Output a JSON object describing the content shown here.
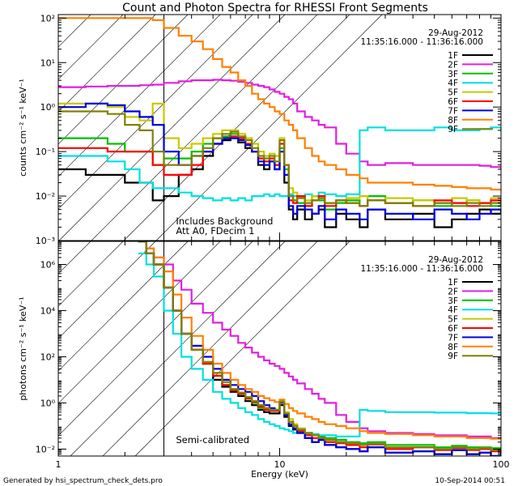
{
  "title": "Count and Photon Spectra for RHESSI Front Segments",
  "footer": {
    "left": "Generated by hsi_spectrum_check_dets.pro",
    "right": "10-Sep-2014 00:51"
  },
  "chart_data": [
    {
      "type": "line",
      "id": "counts",
      "title": "Count and Photon Spectra for RHESSI Front Segments",
      "ylabel": "counts cm⁻² s⁻¹ keV⁻¹",
      "xlabel": "",
      "xscale": "log",
      "yscale": "log",
      "xlim": [
        1,
        100
      ],
      "ylim": [
        0.001,
        120
      ],
      "yticks": [
        0.001,
        0.01,
        0.1,
        1,
        10,
        100
      ],
      "ytick_labels": [
        "10⁻³",
        "10⁻²",
        "10⁻¹",
        "10⁰",
        "10¹",
        "10²"
      ],
      "shaded_region": [
        1,
        3
      ],
      "date": "29-Aug-2012",
      "time_range": "11:35:16.000 - 11:36:16.000",
      "annotation": [
        "Includes Background",
        "Att A0, FDecim 1"
      ],
      "x": [
        1.0,
        1.33,
        1.67,
        2.0,
        2.33,
        2.67,
        3.0,
        3.5,
        4.0,
        4.5,
        5.0,
        5.5,
        6.0,
        6.5,
        7.0,
        7.5,
        8.0,
        8.5,
        9.0,
        9.5,
        10.0,
        10.5,
        11.0,
        11.5,
        12.0,
        13.0,
        14.0,
        15.0,
        16.0,
        18.0,
        20.0,
        23.0,
        25.0,
        30.0,
        40.0,
        50.0,
        60.0,
        70.0,
        80.0,
        90.0,
        100.0
      ],
      "series": [
        {
          "name": "1F",
          "color": "#000000",
          "values": [
            0.04,
            0.03,
            0.03,
            0.02,
            0.02,
            0.008,
            0.01,
            0.03,
            0.04,
            0.08,
            0.15,
            0.18,
            0.2,
            0.16,
            0.12,
            0.1,
            0.05,
            0.04,
            0.06,
            0.04,
            0.1,
            0.02,
            0.005,
            0.003,
            0.005,
            0.003,
            0.004,
            0.005,
            0.002,
            0.004,
            0.003,
            0.002,
            0.005,
            0.003,
            0.004,
            0.002,
            0.003,
            0.004,
            0.005,
            0.004,
            0.005
          ]
        },
        {
          "name": "2F",
          "color": "#e020e0",
          "values": [
            2.8,
            2.9,
            3.0,
            3.0,
            3.1,
            3.2,
            3.5,
            3.8,
            4.0,
            4.0,
            4.1,
            4.0,
            3.9,
            3.7,
            3.5,
            3.2,
            3.0,
            2.8,
            2.5,
            2.2,
            2.0,
            1.7,
            1.5,
            1.2,
            0.8,
            0.6,
            0.5,
            0.4,
            0.35,
            0.15,
            0.09,
            0.06,
            0.05,
            0.055,
            0.05,
            0.05,
            0.05,
            0.05,
            0.048,
            0.045,
            0.04
          ]
        },
        {
          "name": "3F",
          "color": "#00c000",
          "values": [
            0.2,
            0.2,
            0.15,
            0.1,
            0.1,
            0.05,
            0.07,
            0.07,
            0.1,
            0.15,
            0.2,
            0.22,
            0.25,
            0.2,
            0.15,
            0.1,
            0.07,
            0.06,
            0.07,
            0.05,
            0.12,
            0.04,
            0.01,
            0.008,
            0.007,
            0.006,
            0.01,
            0.008,
            0.005,
            0.007,
            0.008,
            0.006,
            0.01,
            0.007,
            0.008,
            0.006,
            0.007,
            0.008,
            0.007,
            0.006,
            0.007
          ]
        },
        {
          "name": "4F",
          "color": "#00e0e0",
          "values": [
            0.08,
            0.08,
            0.06,
            0.04,
            0.02,
            0.015,
            0.015,
            0.012,
            0.01,
            0.009,
            0.008,
            0.009,
            0.008,
            0.009,
            0.008,
            0.01,
            0.01,
            0.011,
            0.01,
            0.011,
            0.01,
            0.01,
            0.011,
            0.01,
            0.01,
            0.011,
            0.01,
            0.012,
            0.011,
            0.01,
            0.011,
            0.3,
            0.35,
            0.3,
            0.3,
            0.35,
            0.3,
            0.3,
            0.32,
            0.35,
            0.3
          ]
        },
        {
          "name": "5F",
          "color": "#c8c800",
          "values": [
            1.2,
            1.2,
            1.0,
            0.6,
            0.5,
            1.2,
            0.2,
            0.12,
            0.15,
            0.2,
            0.25,
            0.3,
            0.3,
            0.25,
            0.2,
            0.15,
            0.1,
            0.08,
            0.09,
            0.08,
            0.2,
            0.05,
            0.015,
            0.012,
            0.01,
            0.008,
            0.01,
            0.009,
            0.007,
            0.008,
            0.009,
            0.01,
            0.008,
            0.009,
            0.008,
            0.007,
            0.009,
            0.008,
            0.007,
            0.009,
            0.008
          ]
        },
        {
          "name": "6F",
          "color": "#ff0000",
          "values": [
            0.12,
            0.12,
            0.1,
            0.1,
            0.1,
            0.05,
            0.03,
            0.03,
            0.05,
            0.1,
            0.15,
            0.2,
            0.22,
            0.2,
            0.15,
            0.1,
            0.07,
            0.06,
            0.07,
            0.05,
            0.15,
            0.05,
            0.008,
            0.007,
            0.01,
            0.006,
            0.008,
            0.01,
            0.006,
            0.008,
            0.007,
            0.006,
            0.008,
            0.007,
            0.006,
            0.008,
            0.007,
            0.006,
            0.007,
            0.008,
            0.006
          ]
        },
        {
          "name": "7F",
          "color": "#0000e0",
          "values": [
            1.0,
            1.2,
            1.1,
            0.8,
            0.6,
            0.4,
            0.1,
            0.05,
            0.08,
            0.1,
            0.15,
            0.2,
            0.2,
            0.18,
            0.14,
            0.1,
            0.06,
            0.05,
            0.06,
            0.04,
            0.1,
            0.03,
            0.006,
            0.004,
            0.006,
            0.005,
            0.004,
            0.006,
            0.003,
            0.005,
            0.004,
            0.003,
            0.005,
            0.004,
            0.003,
            0.005,
            0.004,
            0.003,
            0.004,
            0.005,
            0.004
          ]
        },
        {
          "name": "8F",
          "color": "#ff8000",
          "values": [
            100.0,
            100.0,
            100.0,
            100.0,
            100.0,
            90.0,
            60.0,
            40.0,
            30.0,
            20.0,
            12.0,
            8.0,
            6.0,
            4.0,
            3.0,
            2.0,
            1.5,
            1.2,
            1.0,
            0.8,
            0.7,
            0.5,
            0.4,
            0.3,
            0.2,
            0.12,
            0.08,
            0.06,
            0.05,
            0.04,
            0.03,
            0.025,
            0.02,
            0.02,
            0.018,
            0.017,
            0.016,
            0.015,
            0.015,
            0.014,
            0.013
          ]
        },
        {
          "name": "9F",
          "color": "#808000",
          "values": [
            0.8,
            0.8,
            0.7,
            0.4,
            0.3,
            0.1,
            0.05,
            0.05,
            0.08,
            0.12,
            0.2,
            0.25,
            0.28,
            0.22,
            0.18,
            0.12,
            0.08,
            0.07,
            0.08,
            0.06,
            0.18,
            0.05,
            0.01,
            0.008,
            0.009,
            0.007,
            0.008,
            0.009,
            0.007,
            0.008,
            0.007,
            0.006,
            0.008,
            0.007,
            0.006,
            0.007,
            0.006,
            0.007,
            0.006,
            0.007,
            0.006
          ]
        }
      ]
    },
    {
      "type": "line",
      "id": "photons",
      "ylabel": "photons cm⁻² s⁻¹ keV⁻¹",
      "xlabel": "Energy (keV)",
      "xscale": "log",
      "yscale": "log",
      "xlim": [
        1,
        100
      ],
      "ylim": [
        0.005,
        10000000
      ],
      "yticks": [
        0.01,
        1,
        100,
        10000,
        1000000
      ],
      "ytick_labels": [
        "10⁻²",
        "10⁰",
        "10²",
        "10⁴",
        "10⁶"
      ],
      "xticks": [
        1,
        10,
        100
      ],
      "xtick_labels": [
        "1",
        "10",
        "100"
      ],
      "shaded_region": [
        1,
        3
      ],
      "date": "29-Aug-2012",
      "time_range": "11:35:16.000 - 11:36:16.000",
      "annotation": [
        "Semi-calibrated"
      ],
      "x": [
        2.3,
        2.5,
        2.7,
        3.0,
        3.3,
        3.6,
        4.0,
        4.5,
        5.0,
        5.5,
        6.0,
        6.5,
        7.0,
        7.5,
        8.0,
        8.5,
        9.0,
        9.5,
        10.0,
        10.5,
        11.0,
        11.5,
        12.0,
        13.0,
        14.0,
        15.0,
        16.0,
        18.0,
        20.0,
        23.0,
        25.0,
        30.0,
        40.0,
        50.0,
        60.0,
        70.0,
        80.0,
        90.0,
        100.0
      ],
      "series": [
        {
          "name": "1F",
          "color": "#000000",
          "values": [
            10000000.0,
            3000000.0,
            1000000.0,
            100000.0,
            10000.0,
            1000.0,
            200.0,
            50.0,
            10.0,
            5.0,
            3.0,
            2.0,
            1.2,
            0.8,
            0.5,
            0.4,
            0.35,
            0.35,
            0.8,
            0.25,
            0.1,
            0.07,
            0.05,
            0.03,
            0.02,
            0.025,
            0.015,
            0.012,
            0.01,
            0.008,
            0.012,
            0.007,
            0.008,
            0.006,
            0.009,
            0.006,
            0.007,
            0.005,
            0.007
          ]
        },
        {
          "name": "2F",
          "color": "#e020e0",
          "values": [
            10000000.0,
            5000000.0,
            2000000.0,
            1000000.0,
            200000.0,
            80000.0,
            20000.0,
            8000.0,
            3000.0,
            1500.0,
            800.0,
            400.0,
            250.0,
            150.0,
            100.0,
            70.0,
            50.0,
            40.0,
            30.0,
            20.0,
            14.0,
            10.0,
            7.0,
            4.0,
            2.5,
            1.5,
            1.0,
            0.3,
            0.15,
            0.08,
            0.06,
            0.05,
            0.045,
            0.04,
            0.04,
            0.035,
            0.035,
            0.03,
            0.03
          ]
        },
        {
          "name": "3F",
          "color": "#00c000",
          "values": [
            10000000.0,
            3000000.0,
            1000000.0,
            100000.0,
            10000.0,
            1000.0,
            200.0,
            50.0,
            15.0,
            6.0,
            3.5,
            2.5,
            1.5,
            1.0,
            0.6,
            0.5,
            0.45,
            0.5,
            1.2,
            0.35,
            0.15,
            0.1,
            0.07,
            0.05,
            0.04,
            0.035,
            0.03,
            0.025,
            0.02,
            0.018,
            0.02,
            0.015,
            0.015,
            0.012,
            0.014,
            0.012,
            0.012,
            0.011,
            0.012
          ]
        },
        {
          "name": "4F",
          "color": "#00e0e0",
          "values": [
            3000000.0,
            1000000.0,
            300000.0,
            10000.0,
            1000.0,
            100.0,
            30.0,
            10.0,
            3.0,
            1.5,
            1.0,
            0.6,
            0.4,
            0.3,
            0.2,
            0.15,
            0.12,
            0.1,
            0.08,
            0.07,
            0.06,
            0.05,
            0.05,
            0.045,
            0.045,
            0.04,
            0.04,
            0.035,
            0.035,
            0.5,
            0.45,
            0.4,
            0.4,
            0.38,
            0.38,
            0.36,
            0.36,
            0.35,
            0.35
          ]
        },
        {
          "name": "5F",
          "color": "#c8c800",
          "values": [
            10000000.0,
            3000000.0,
            1000000.0,
            100000.0,
            10000.0,
            1000.0,
            200.0,
            60.0,
            20.0,
            8.0,
            4.0,
            2.8,
            1.8,
            1.2,
            0.8,
            0.6,
            0.5,
            0.5,
            1.0,
            0.4,
            0.2,
            0.12,
            0.08,
            0.05,
            0.04,
            0.03,
            0.025,
            0.02,
            0.018,
            0.015,
            0.017,
            0.012,
            0.012,
            0.01,
            0.012,
            0.01,
            0.011,
            0.009,
            0.01
          ]
        },
        {
          "name": "6F",
          "color": "#ff0000",
          "values": [
            10000000.0,
            3000000.0,
            1000000.0,
            100000.0,
            10000.0,
            1000.0,
            200.0,
            50.0,
            15.0,
            6.0,
            3.5,
            2.5,
            1.6,
            1.1,
            0.7,
            0.5,
            0.45,
            0.45,
            1.1,
            0.3,
            0.15,
            0.1,
            0.06,
            0.04,
            0.03,
            0.03,
            0.02,
            0.018,
            0.015,
            0.012,
            0.016,
            0.01,
            0.012,
            0.009,
            0.011,
            0.009,
            0.01,
            0.008,
            0.009
          ]
        },
        {
          "name": "7F",
          "color": "#0000e0",
          "values": [
            10000000.0,
            3000000.0,
            1000000.0,
            100000.0,
            10000.0,
            1000.0,
            300.0,
            100.0,
            30.0,
            10.0,
            6.0,
            4.0,
            3.0,
            2.0,
            1.2,
            0.8,
            0.6,
            0.5,
            1.0,
            0.3,
            0.12,
            0.08,
            0.05,
            0.03,
            0.02,
            0.025,
            0.015,
            0.012,
            0.01,
            0.008,
            0.012,
            0.007,
            0.008,
            0.006,
            0.009,
            0.006,
            0.007,
            0.005,
            0.007
          ]
        },
        {
          "name": "8F",
          "color": "#ff8000",
          "values": [
            10000000.0,
            5000000.0,
            2000000.0,
            500000.0,
            50000.0,
            5000.0,
            800.0,
            200.0,
            50.0,
            20.0,
            10.0,
            6.0,
            4.0,
            3.0,
            2.0,
            1.6,
            1.3,
            1.1,
            1.4,
            0.9,
            0.6,
            0.45,
            0.35,
            0.25,
            0.2,
            0.15,
            0.12,
            0.1,
            0.08,
            0.06,
            0.05,
            0.045,
            0.04,
            0.035,
            0.035,
            0.03,
            0.03,
            0.028,
            0.027
          ]
        },
        {
          "name": "9F",
          "color": "#808000",
          "values": [
            10000000.0,
            3000000.0,
            1000000.0,
            100000.0,
            10000.0,
            1000.0,
            200.0,
            60.0,
            20.0,
            8.0,
            4.0,
            2.8,
            1.8,
            1.2,
            0.8,
            0.6,
            0.5,
            0.5,
            1.1,
            0.35,
            0.15,
            0.1,
            0.07,
            0.05,
            0.04,
            0.03,
            0.025,
            0.02,
            0.018,
            0.015,
            0.017,
            0.012,
            0.012,
            0.01,
            0.012,
            0.01,
            0.011,
            0.009,
            0.01
          ]
        }
      ]
    }
  ]
}
